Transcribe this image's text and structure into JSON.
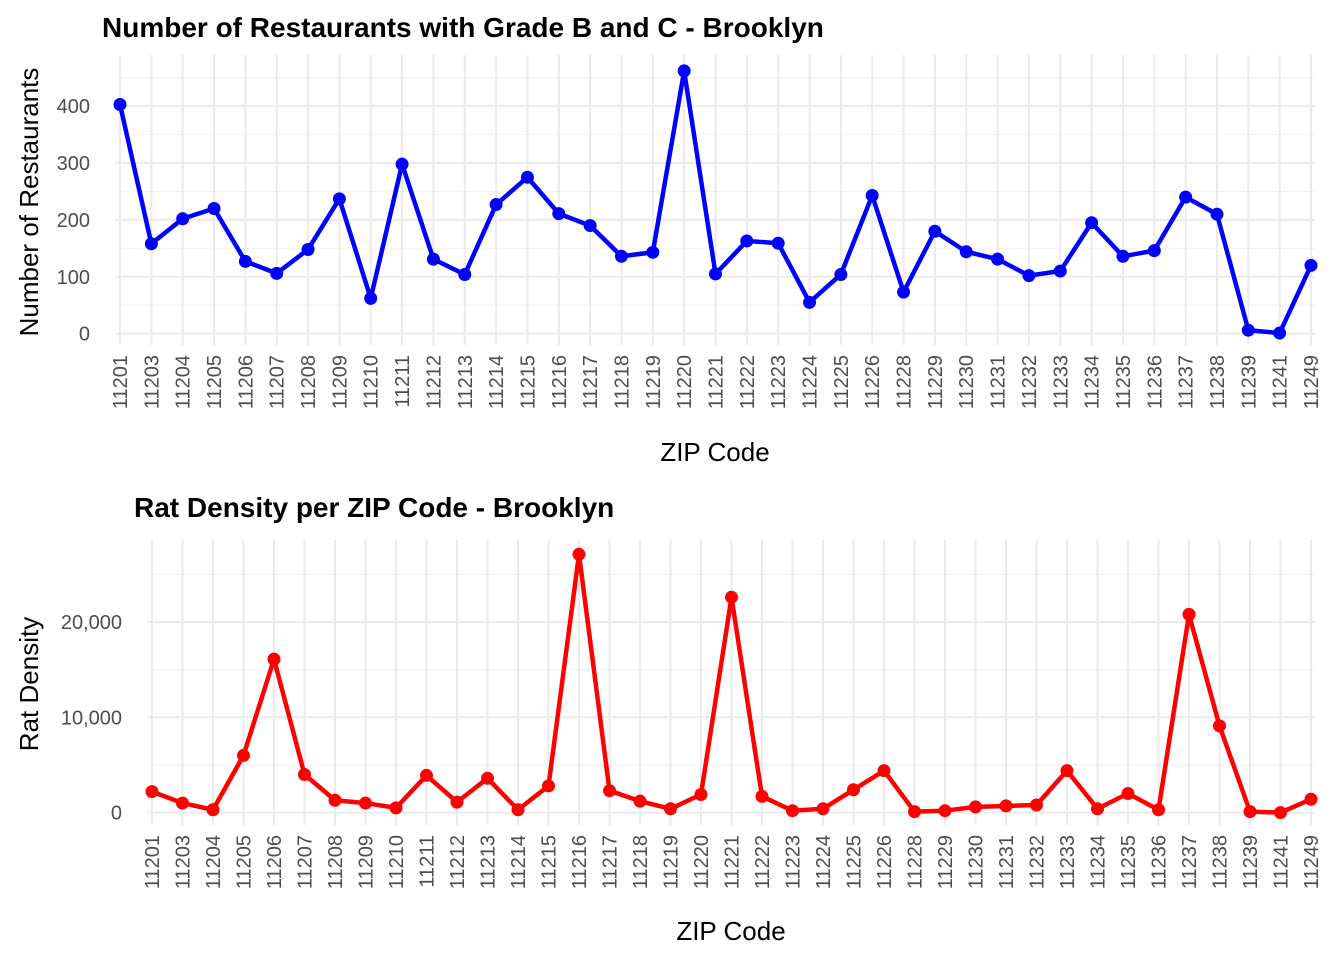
{
  "chart_data": [
    {
      "type": "line",
      "title": "Number of Restaurants with Grade B and C - Brooklyn",
      "xlabel": "ZIP Code",
      "ylabel": "Number of Restaurants",
      "categories": [
        "11201",
        "11203",
        "11204",
        "11205",
        "11206",
        "11207",
        "11208",
        "11209",
        "11210",
        "11211",
        "11212",
        "11213",
        "11214",
        "11215",
        "11216",
        "11217",
        "11218",
        "11219",
        "11220",
        "11221",
        "11222",
        "11223",
        "11224",
        "11225",
        "11226",
        "11228",
        "11229",
        "11230",
        "11231",
        "11232",
        "11233",
        "11234",
        "11235",
        "11236",
        "11237",
        "11238",
        "11239",
        "11241",
        "11249"
      ],
      "series": [
        {
          "color": "#0000ff",
          "values": [
            403,
            158,
            202,
            220,
            127,
            106,
            148,
            237,
            62,
            298,
            131,
            104,
            227,
            275,
            211,
            190,
            136,
            143,
            462,
            105,
            163,
            159,
            55,
            104,
            243,
            73,
            180,
            144,
            131,
            102,
            110,
            195,
            136,
            146,
            240,
            210,
            6,
            1,
            120
          ]
        }
      ],
      "ylim": [
        -20,
        490
      ],
      "yticks": [
        0,
        100,
        200,
        300,
        400
      ],
      "ytick_labels": [
        "0",
        "100",
        "200",
        "300",
        "400"
      ],
      "grid": true
    },
    {
      "type": "line",
      "title": "Rat Density per ZIP Code - Brooklyn",
      "xlabel": "ZIP Code",
      "ylabel": "Rat Density",
      "categories": [
        "11201",
        "11203",
        "11204",
        "11205",
        "11206",
        "11207",
        "11208",
        "11209",
        "11210",
        "11211",
        "11212",
        "11213",
        "11214",
        "11215",
        "11216",
        "11217",
        "11218",
        "11219",
        "11220",
        "11221",
        "11222",
        "11223",
        "11224",
        "11225",
        "11226",
        "11228",
        "11229",
        "11230",
        "11231",
        "11232",
        "11233",
        "11234",
        "11235",
        "11236",
        "11237",
        "11238",
        "11239",
        "11241",
        "11249"
      ],
      "series": [
        {
          "color": "#ff0000",
          "values": [
            2200,
            1000,
            300,
            6000,
            16100,
            4000,
            1300,
            1000,
            500,
            3900,
            1100,
            3600,
            300,
            2800,
            27100,
            2300,
            1200,
            400,
            1900,
            22600,
            1700,
            200,
            400,
            2400,
            4400,
            100,
            200,
            600,
            700,
            800,
            4400,
            400,
            2000,
            300,
            20800,
            9100,
            100,
            0,
            1400
          ]
        }
      ],
      "ylim": [
        -1300,
        28600
      ],
      "yticks": [
        0,
        10000,
        20000
      ],
      "ytick_labels": [
        "0",
        "10,000",
        "20,000"
      ],
      "grid": true
    }
  ]
}
